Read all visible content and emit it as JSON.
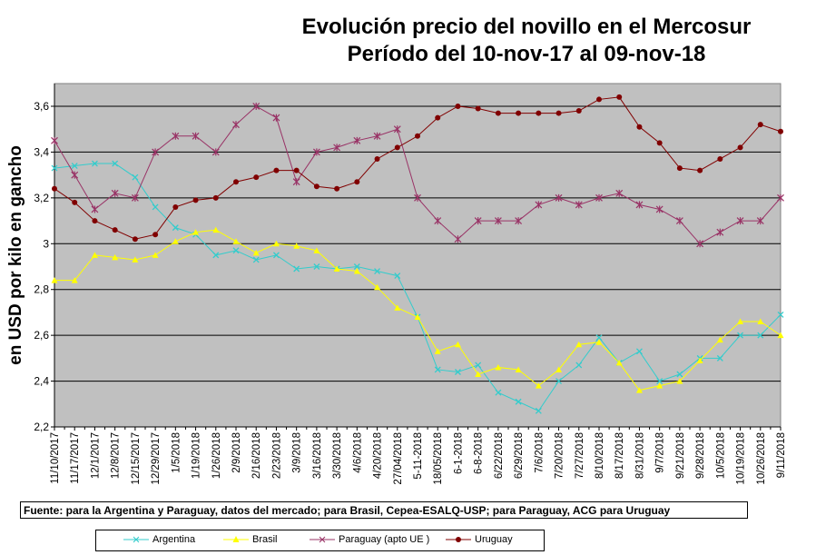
{
  "chart_data": {
    "type": "line",
    "title": "Evolución precio del novillo en el Mercosur",
    "subtitle": "Período del 10-nov-17 al 09-nov-18",
    "ylabel": "en USD por kilo en gancho",
    "xlabel": "",
    "ylim": [
      2.2,
      3.7
    ],
    "yticks": [
      "2,2",
      "2,4",
      "2,6",
      "2,8",
      "3",
      "3,2",
      "3,4",
      "3,6"
    ],
    "ytick_values": [
      2.2,
      2.4,
      2.6,
      2.8,
      3.0,
      3.2,
      3.4,
      3.6
    ],
    "grid": true,
    "legend_position": "bottom",
    "categories": [
      "11/10/2017",
      "11/17/2017",
      "12/1/2017",
      "12/8/2017",
      "12/15/2017",
      "12/29/2017",
      "1/5/2018",
      "1/19/2018",
      "1/26/2018",
      "2/9/2018",
      "2/16/2018",
      "2/23/2018",
      "3/9/2018",
      "3/16/2018",
      "3/30/2018",
      "4/6/2018",
      "4/20/2018",
      "27/04/2018",
      "5-11-2018",
      "18/05/2018",
      "6-1-2018",
      "6-8-2018",
      "6/22/2018",
      "6/29/2018",
      "7/6/2018",
      "7/20/2018",
      "7/27/2018",
      "8/10/2018",
      "8/17/2018",
      "8/31/2018",
      "9/7/2018",
      "9/21/2018",
      "9/28/2018",
      "10/5/2018",
      "10/19/2018",
      "10/26/2018",
      "9/11/2018"
    ],
    "series": [
      {
        "name": "Argentina",
        "color": "#33CCCC",
        "marker": "x",
        "values": [
          3.33,
          3.34,
          3.35,
          3.35,
          3.29,
          3.16,
          3.07,
          3.04,
          2.95,
          2.97,
          2.93,
          2.95,
          2.89,
          2.9,
          2.89,
          2.9,
          2.88,
          2.86,
          2.68,
          2.45,
          2.44,
          2.47,
          2.35,
          2.31,
          2.27,
          2.4,
          2.47,
          2.59,
          2.48,
          2.53,
          2.4,
          2.43,
          2.5,
          2.5,
          2.6,
          2.6,
          2.69
        ]
      },
      {
        "name": "Brasil",
        "color": "#FFFF00",
        "marker": "triangle",
        "values": [
          2.84,
          2.84,
          2.95,
          2.94,
          2.93,
          2.95,
          3.01,
          3.05,
          3.06,
          3.01,
          2.96,
          3.0,
          2.99,
          2.97,
          2.89,
          2.88,
          2.81,
          2.72,
          2.68,
          2.53,
          2.56,
          2.43,
          2.46,
          2.45,
          2.38,
          2.45,
          2.56,
          2.57,
          2.48,
          2.36,
          2.38,
          2.4,
          2.49,
          2.58,
          2.66,
          2.66,
          2.6
        ]
      },
      {
        "name": "Paraguay (apto UE )",
        "color": "#993366",
        "marker": "star",
        "values": [
          3.45,
          3.3,
          3.15,
          3.22,
          3.2,
          3.4,
          3.47,
          3.47,
          3.4,
          3.52,
          3.6,
          3.55,
          3.27,
          3.4,
          3.42,
          3.45,
          3.47,
          3.5,
          3.2,
          3.1,
          3.02,
          3.1,
          3.1,
          3.1,
          3.17,
          3.2,
          3.17,
          3.2,
          3.22,
          3.17,
          3.15,
          3.1,
          3.0,
          3.05,
          3.1,
          3.1,
          3.2
        ]
      },
      {
        "name": "Uruguay",
        "color": "#800000",
        "marker": "circle",
        "values": [
          3.24,
          3.18,
          3.1,
          3.06,
          3.02,
          3.04,
          3.16,
          3.19,
          3.2,
          3.27,
          3.29,
          3.32,
          3.32,
          3.25,
          3.24,
          3.27,
          3.37,
          3.42,
          3.47,
          3.55,
          3.6,
          3.59,
          3.57,
          3.57,
          3.57,
          3.57,
          3.58,
          3.63,
          3.64,
          3.51,
          3.44,
          3.33,
          3.32,
          3.37,
          3.42,
          3.52,
          3.49
        ]
      }
    ],
    "source": "Fuente: para la Argentina y Paraguay, datos del mercado; para Brasil, Cepea-ESALQ-USP; para Paraguay, ACG para Uruguay"
  }
}
